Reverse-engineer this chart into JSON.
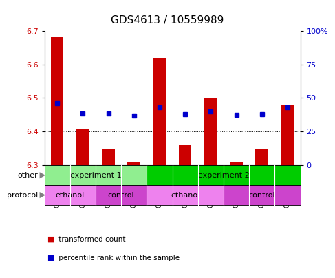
{
  "title": "GDS4613 / 10559989",
  "samples": [
    "GSM847024",
    "GSM847025",
    "GSM847026",
    "GSM847027",
    "GSM847028",
    "GSM847030",
    "GSM847032",
    "GSM847029",
    "GSM847031",
    "GSM847033"
  ],
  "bar_values": [
    6.68,
    6.41,
    6.35,
    6.31,
    6.62,
    6.36,
    6.5,
    6.31,
    6.35,
    6.48
  ],
  "blue_values": [
    6.485,
    6.455,
    6.453,
    6.448,
    6.472,
    6.452,
    6.461,
    6.449,
    6.452,
    6.472
  ],
  "ylim": [
    6.3,
    6.7
  ],
  "yticks_left": [
    6.3,
    6.4,
    6.5,
    6.6,
    6.7
  ],
  "yticks_right": [
    0,
    25,
    50,
    75,
    100
  ],
  "bar_color": "#cc0000",
  "blue_color": "#0000cc",
  "bar_width": 0.5,
  "experiment1_color": "#90EE90",
  "experiment2_color": "#00CC00",
  "ethanol_color": "#EE82EE",
  "control_color": "#CC44CC",
  "sample_bg_color": "#CCCCCC",
  "legend_red_label": "transformed count",
  "legend_blue_label": "percentile rank within the sample"
}
